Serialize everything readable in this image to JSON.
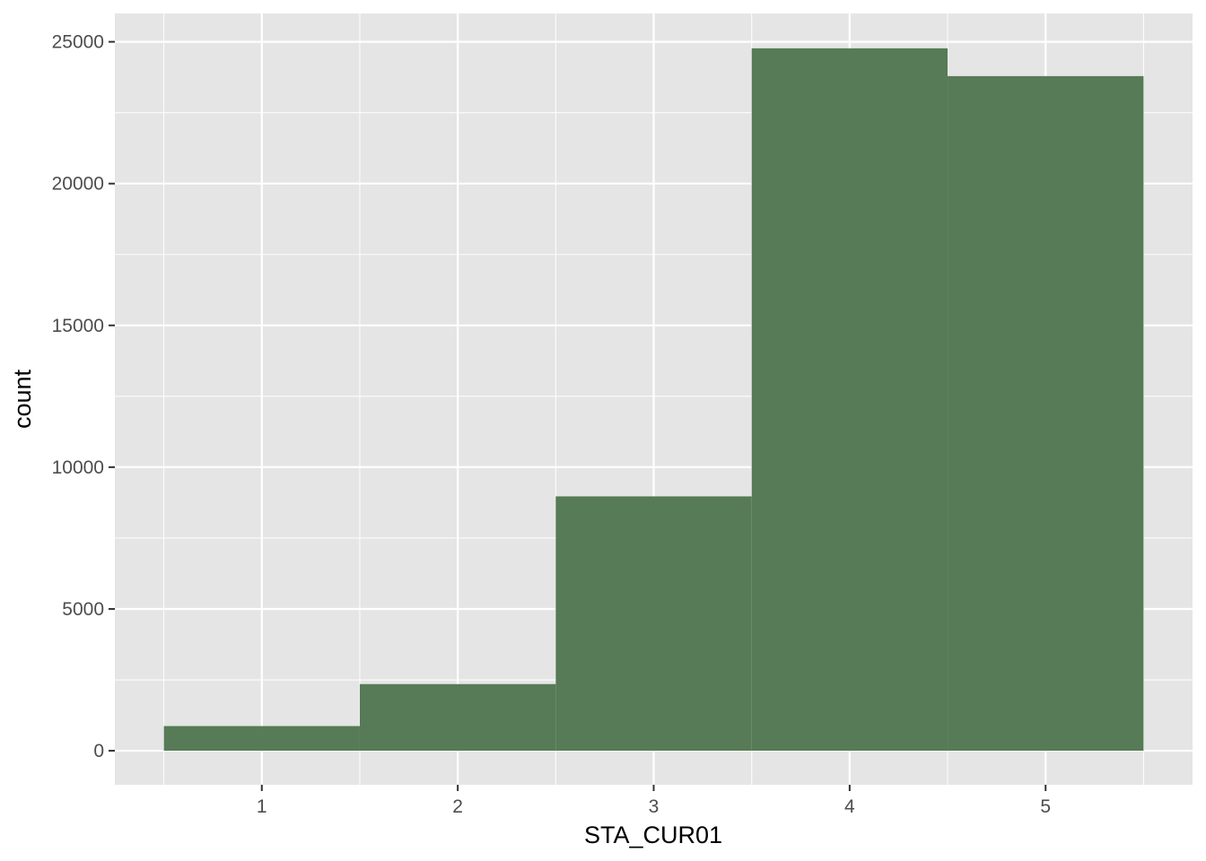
{
  "chart_data": {
    "type": "bar",
    "xlabel": "STA_CUR01",
    "ylabel": "count",
    "categories": [
      1,
      2,
      3,
      4,
      5
    ],
    "values": [
      870,
      2350,
      8970,
      24770,
      23790
    ],
    "x_ticks": [
      "1",
      "2",
      "3",
      "4",
      "5"
    ],
    "y_ticks": [
      "0",
      "5000",
      "10000",
      "15000",
      "20000",
      "25000"
    ],
    "xlim": [
      0.25,
      5.75
    ],
    "ylim": [
      -1200,
      26000
    ],
    "grid": true,
    "legend": "none",
    "colors": {
      "bar": "#567b56",
      "panel": "#e5e5e5",
      "grid": "#ffffff"
    }
  }
}
